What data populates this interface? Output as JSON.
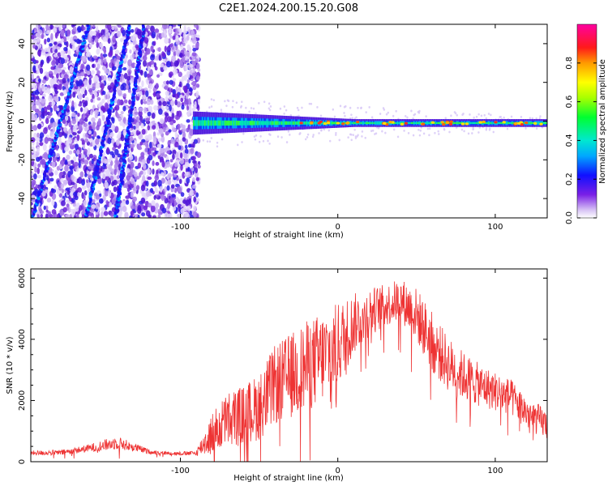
{
  "figure_title": "C2E1.2024.200.15.20.G08",
  "chart_data": [
    {
      "type": "heatmap",
      "title": "",
      "xlabel": "Height of straight line (km)",
      "ylabel": "Frequency (Hz)",
      "xlim": [
        -195,
        133
      ],
      "ylim": [
        -50,
        50
      ],
      "xticks": [
        -100,
        0,
        100
      ],
      "yticks": [
        -40,
        -20,
        0,
        20,
        40
      ],
      "colorbar": {
        "label": "Normalized spectral amplitude",
        "range": [
          0,
          1
        ],
        "ticks": [
          0.0,
          0.2,
          0.4,
          0.6,
          0.8
        ]
      },
      "features": {
        "noise_region_x": [
          -195,
          -88
        ],
        "streaks": [
          {
            "x_start": -194,
            "x_end": -158,
            "y_start": -50,
            "y_end": 50
          },
          {
            "x_start": -160,
            "x_end": -132,
            "y_start": -50,
            "y_end": 50
          },
          {
            "x_start": -141,
            "x_end": -123,
            "y_start": -50,
            "y_end": 50
          }
        ],
        "signal_band": {
          "x": [
            -92,
            133
          ],
          "center_hz": -1,
          "width_hz_start": 12,
          "width_hz_end": 4
        }
      }
    },
    {
      "type": "line",
      "title": "",
      "xlabel": "Height of straight line (km)",
      "ylabel": "SNR (10 * v/v)",
      "xlim": [
        -195,
        133
      ],
      "ylim": [
        0,
        6300
      ],
      "xticks": [
        -100,
        0,
        100
      ],
      "yticks": [
        0,
        2000,
        4000,
        6000
      ],
      "series": [
        {
          "name": "SNR",
          "color": "#ee3333",
          "envelope": {
            "x": [
              -195,
              -175,
              -160,
              -150,
              -140,
              -130,
              -120,
              -110,
              -100,
              -90,
              -85,
              -80,
              -70,
              -60,
              -50,
              -40,
              -30,
              -20,
              -10,
              0,
              10,
              20,
              30,
              40,
              50,
              60,
              70,
              80,
              90,
              100,
              110,
              120,
              133
            ],
            "mean": [
              280,
              300,
              420,
              520,
              620,
              480,
              330,
              280,
              270,
              280,
              600,
              900,
              1400,
              1500,
              1800,
              2500,
              2800,
              3100,
              3400,
              3800,
              4500,
              4900,
              5100,
              5300,
              4800,
              3900,
              3200,
              2800,
              2500,
              2300,
              2100,
              1600,
              1200
            ],
            "spread": [
              80,
              90,
              120,
              180,
              220,
              150,
              80,
              60,
              60,
              80,
              400,
              700,
              900,
              1000,
              1100,
              1300,
              1400,
              1500,
              1500,
              1400,
              1000,
              800,
              700,
              700,
              900,
              1000,
              900,
              800,
              700,
              650,
              600,
              550,
              500
            ]
          }
        }
      ]
    }
  ]
}
